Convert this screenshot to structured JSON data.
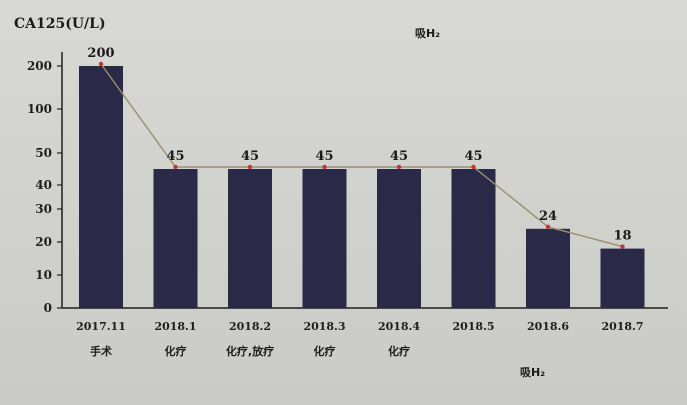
{
  "chart_data": {
    "type": "bar",
    "title": "",
    "ylabel": "CA125(U/L)",
    "xlabel": "",
    "y_axis_type": "broken",
    "yticks": [
      "0",
      "10",
      "20",
      "30",
      "40",
      "50",
      "100",
      "200"
    ],
    "categories": [
      "2017.11",
      "2018.1",
      "2018.2",
      "2018.3",
      "2018.4",
      "2018.5",
      "2018.6",
      "2018.7"
    ],
    "treatments": [
      "手术",
      "化疗",
      "化疗,放疗",
      "化疗",
      "化疗",
      "",
      "",
      ""
    ],
    "values": [
      200,
      45,
      45,
      45,
      45,
      45,
      24,
      18
    ],
    "data_labels": [
      "200",
      "45",
      "45",
      "45",
      "45",
      "45",
      "24",
      "18"
    ],
    "trend_line": true,
    "annotations": [
      "吸H₂",
      "吸H₂"
    ],
    "grid": false,
    "colors": {
      "bar": "#2a2a48",
      "line": "#9a9070",
      "marker": "#c0392b",
      "axis": "#1e1e1e"
    }
  }
}
